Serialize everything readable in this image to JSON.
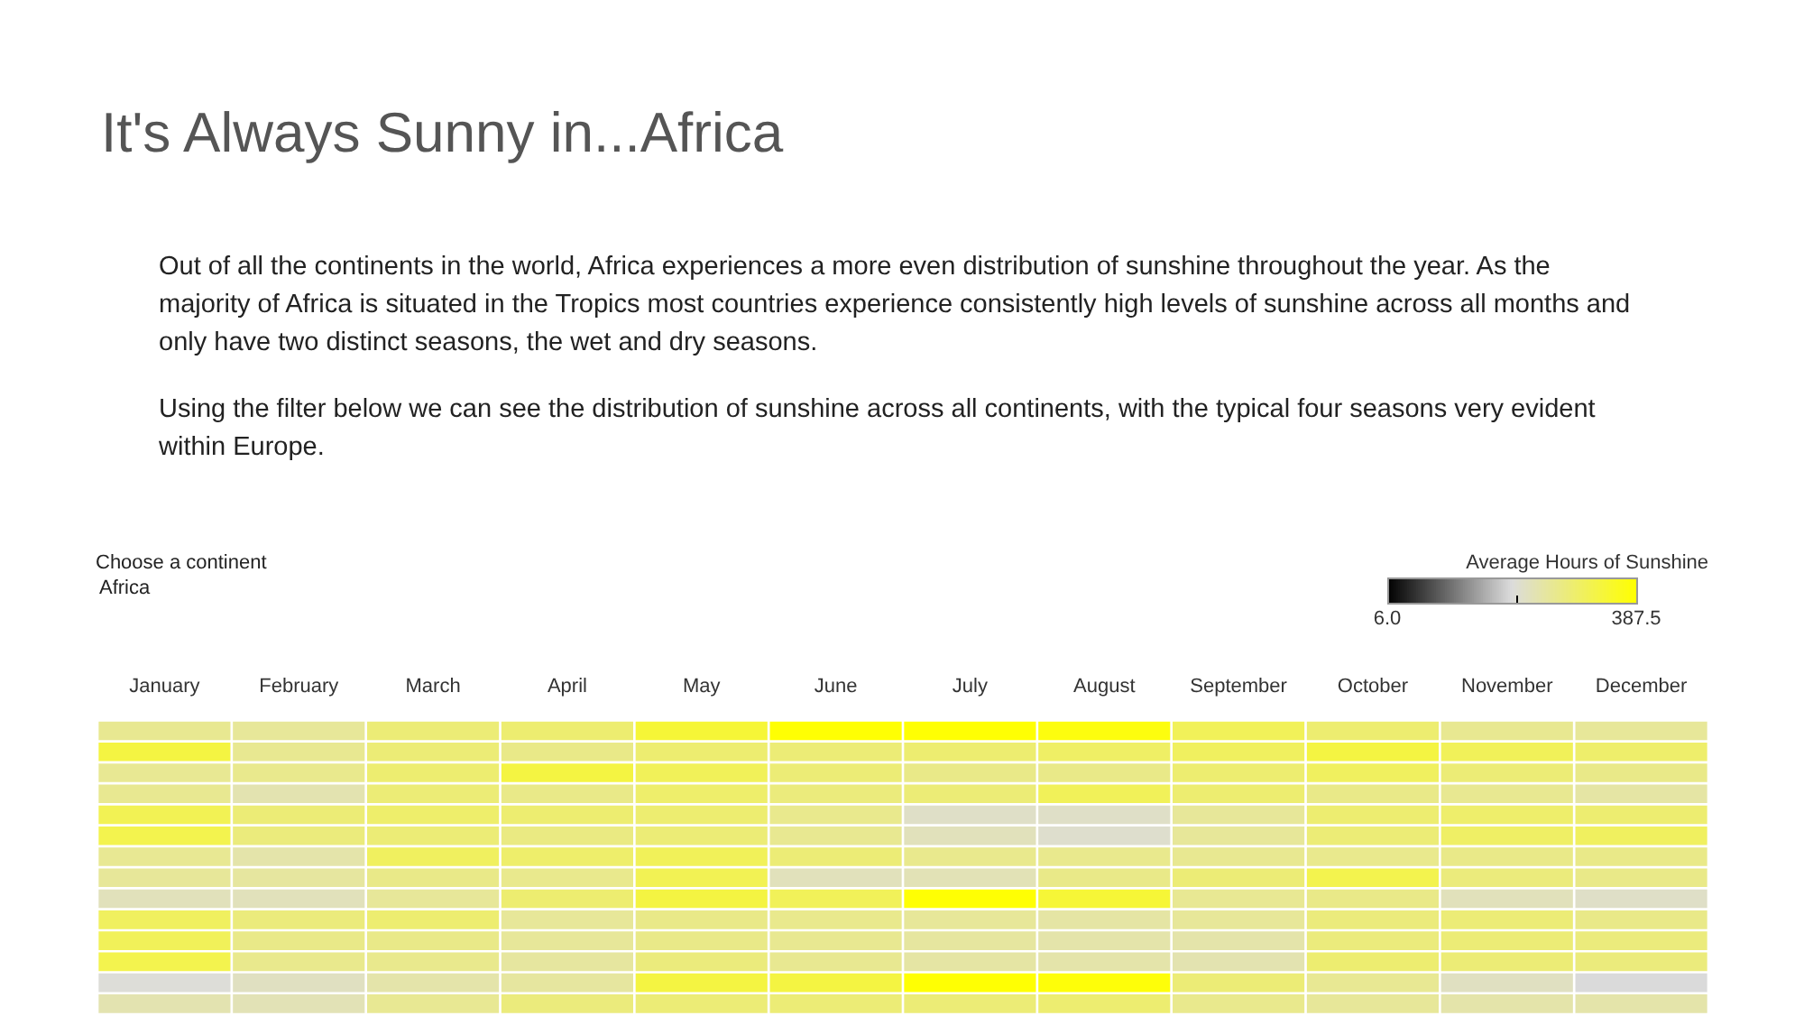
{
  "chart_data": {
    "type": "heatmap",
    "title": "It's Always Sunny in...Africa",
    "subtitle": "Out of all the continents in the world, Africa experiences a more even distribution of sunshine throughout the year.  As the majority of Africa is situated in the Tropics most countries experience consistently high levels of sunshine across all months and only have two distinct seasons, the wet and dry seasons.",
    "annotations": [
      "Using the filter below we can see the distribution of sunshine across all continents, with the typical four seasons very evident within Europe.",
      "Choose a continent",
      "Africa"
    ],
    "clabel": "Average Hours of Sunshine",
    "categories": [
      "January",
      "February",
      "March",
      "April",
      "May",
      "June",
      "July",
      "August",
      "September",
      "October",
      "November",
      "December"
    ],
    "y_categories": [
      null,
      null,
      null,
      null,
      null,
      null,
      null,
      null,
      null,
      null,
      null,
      null,
      null,
      null
    ],
    "cells": [
      [
        262,
        255,
        285,
        290,
        340,
        385,
        385,
        375,
        310,
        290,
        262,
        255
      ],
      [
        330,
        262,
        285,
        270,
        290,
        285,
        290,
        300,
        305,
        330,
        310,
        295
      ],
      [
        260,
        265,
        290,
        330,
        310,
        285,
        270,
        270,
        290,
        305,
        285,
        270
      ],
      [
        262,
        235,
        285,
        270,
        295,
        280,
        285,
        310,
        290,
        270,
        262,
        245
      ],
      [
        315,
        285,
        295,
        290,
        290,
        265,
        215,
        215,
        255,
        290,
        295,
        290
      ],
      [
        320,
        280,
        285,
        275,
        285,
        262,
        225,
        210,
        255,
        285,
        300,
        305
      ],
      [
        260,
        240,
        305,
        295,
        310,
        285,
        265,
        265,
        262,
        265,
        270,
        270
      ],
      [
        255,
        250,
        270,
        265,
        315,
        225,
        230,
        270,
        285,
        320,
        280,
        270
      ],
      [
        225,
        225,
        255,
        290,
        330,
        310,
        385,
        340,
        260,
        270,
        225,
        215
      ],
      [
        305,
        280,
        290,
        255,
        270,
        265,
        255,
        245,
        255,
        280,
        285,
        270
      ],
      [
        310,
        270,
        270,
        255,
        270,
        262,
        250,
        240,
        240,
        280,
        285,
        280
      ],
      [
        320,
        265,
        265,
        250,
        280,
        262,
        245,
        240,
        235,
        290,
        285,
        280
      ],
      [
        200,
        220,
        240,
        250,
        330,
        330,
        385,
        380,
        285,
        260,
        220,
        195
      ],
      [
        235,
        230,
        260,
        280,
        285,
        285,
        285,
        290,
        265,
        255,
        240,
        240
      ]
    ],
    "clim": [
      6,
      387.5
    ],
    "cticks": [
      {
        "value": 6,
        "label": "6.0"
      },
      {
        "value": 205,
        "label": null
      },
      387.5
    ]
  }
}
